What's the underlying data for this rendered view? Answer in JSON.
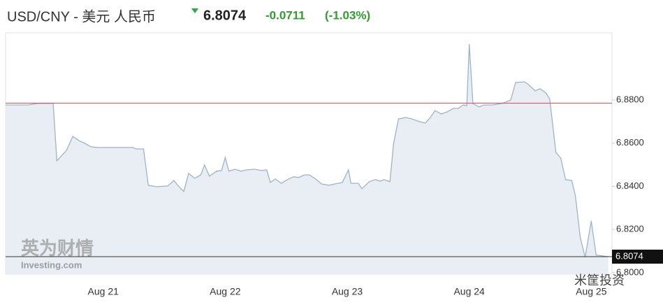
{
  "chart_data": {
    "type": "area",
    "title": "USD/CNY - 美元 人民币",
    "price": 6.8074,
    "change": -0.0711,
    "change_percent": "(-1.03%)",
    "previous_close": 6.8785,
    "watermark_left": "英为财情",
    "watermark_left_sub": "Investing.com",
    "watermark_right": "米筐投资",
    "color": "#9db4c8",
    "fill": "#e9eef4",
    "x": [
      20.2,
      20.38,
      20.47,
      20.59,
      20.62,
      20.7,
      20.75,
      20.81,
      20.85,
      20.9,
      20.95,
      21.24,
      21.27,
      21.33,
      21.37,
      21.44,
      21.53,
      21.58,
      21.61,
      21.66,
      21.7,
      21.75,
      21.8,
      21.83,
      21.87,
      21.93,
      21.97,
      22.0,
      22.03,
      22.08,
      22.13,
      22.17,
      22.24,
      22.3,
      22.34,
      22.37,
      22.41,
      22.46,
      22.51,
      22.56,
      22.6,
      22.65,
      22.69,
      22.74,
      22.79,
      22.85,
      22.9,
      22.96,
      23.01,
      23.03,
      23.09,
      23.12,
      23.18,
      23.23,
      23.27,
      23.3,
      23.35,
      23.38,
      23.42,
      23.48,
      23.53,
      23.59,
      23.64,
      23.68,
      23.72,
      23.77,
      23.82,
      23.87,
      23.91,
      23.95,
      23.98,
      24.0,
      24.03,
      24.08,
      24.12,
      24.19,
      24.27,
      24.34,
      24.38,
      24.45,
      24.48,
      24.54,
      24.58,
      24.63,
      24.66,
      24.71,
      24.75,
      24.79,
      24.84,
      24.87,
      24.91,
      24.95,
      25.0,
      25.04,
      25.14
    ],
    "values": [
      6.8777,
      6.8777,
      6.8784,
      6.8784,
      6.8518,
      6.8567,
      6.8631,
      6.8609,
      6.8599,
      6.8583,
      6.858,
      6.858,
      6.8573,
      6.8573,
      6.8405,
      6.8398,
      6.8402,
      6.8427,
      6.8405,
      6.8376,
      6.846,
      6.8437,
      6.8453,
      6.8499,
      6.8447,
      6.847,
      6.8473,
      6.8534,
      6.847,
      6.8479,
      6.847,
      6.8476,
      6.8479,
      6.8473,
      6.8476,
      6.8418,
      6.8434,
      6.8414,
      6.8431,
      6.8444,
      6.8441,
      6.8453,
      6.8453,
      6.8434,
      6.8411,
      6.8405,
      6.8411,
      6.8418,
      6.8476,
      6.8414,
      6.8414,
      6.8389,
      6.8421,
      6.8431,
      6.8424,
      6.8431,
      6.8421,
      6.8599,
      6.8712,
      6.8719,
      6.8712,
      6.87,
      6.8693,
      6.8719,
      6.8751,
      6.8735,
      6.8745,
      6.8761,
      6.8761,
      6.8777,
      6.8774,
      6.9059,
      6.8784,
      6.8768,
      6.8777,
      6.8777,
      6.8784,
      6.88,
      6.8881,
      6.8884,
      6.8874,
      6.8842,
      6.8852,
      6.8832,
      6.8803,
      6.8557,
      6.8531,
      6.8431,
      6.8427,
      6.8356,
      6.8162,
      6.8071,
      6.8239,
      6.8081,
      6.8074
    ],
    "xlim": [
      20.2,
      25.17
    ],
    "xticks": [
      {
        "value": 21,
        "label": "Aug 21"
      },
      {
        "value": 22,
        "label": "Aug 22"
      },
      {
        "value": 23,
        "label": "Aug 23"
      },
      {
        "value": 24,
        "label": "Aug 24"
      },
      {
        "value": 25,
        "label": "Aug 25"
      }
    ],
    "ylim": [
      6.7993,
      6.9111
    ],
    "yticks": [
      {
        "value": 6.88,
        "label": "6.8800"
      },
      {
        "value": 6.86,
        "label": "6.8600"
      },
      {
        "value": 6.84,
        "label": "6.8400"
      },
      {
        "value": 6.82,
        "label": "6.8200"
      },
      {
        "value": 6.8,
        "label": "6.8000"
      }
    ]
  }
}
